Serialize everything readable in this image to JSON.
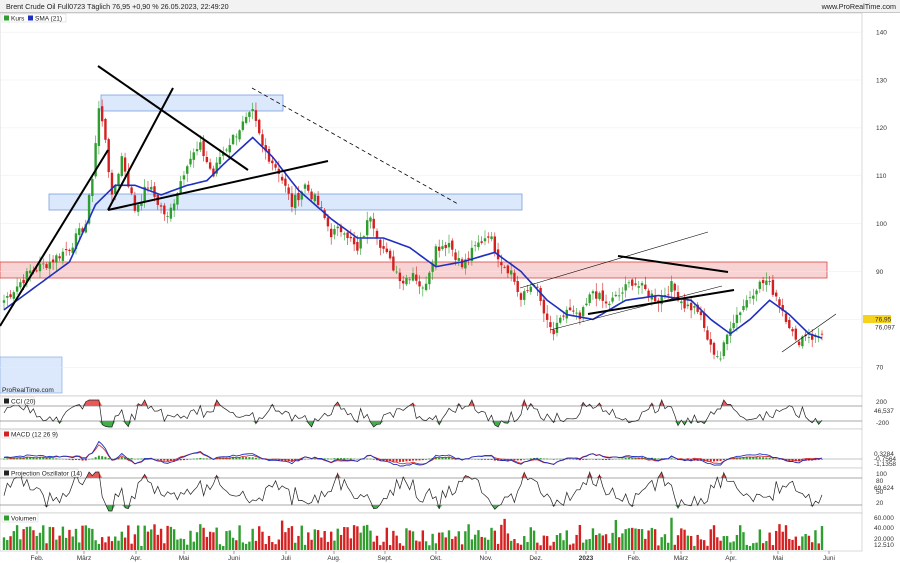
{
  "header": {
    "title": "Brent Crude Oil Full0723 Täglich 76,95 +0,90 % 26.05.2023, 22:49:20",
    "site": "www.ProRealTime.com"
  },
  "watermark": "ProRealTime.com",
  "colors": {
    "up": "#2f9e2f",
    "down": "#d42020",
    "sma": "#1f2fbf",
    "zone_blue": "#dce8fb",
    "zone_red": "#f8d3d3"
  },
  "chart_data": [
    {
      "type": "candlestick",
      "panel": "price",
      "legend": [
        {
          "name": "Kurs",
          "color": "#2f9e2f"
        },
        {
          "name": "SMA (21)",
          "color": "#1f2fbf"
        }
      ],
      "y_ticks": [
        "140",
        "130",
        "120",
        "110",
        "100",
        "90",
        "80",
        "70"
      ],
      "ylim": [
        64,
        144
      ],
      "last_price_label": "76,95",
      "sma_label": "76,097",
      "x_labels": [
        "Feb.",
        "März",
        "Apr.",
        "Mai",
        "Juni",
        "Juli",
        "Aug.",
        "Sept.",
        "Okt.",
        "Nov.",
        "Dez.",
        "2023",
        "Feb.",
        "März",
        "Apr.",
        "Mai",
        "Juni"
      ],
      "close_anchors": [
        [
          0,
          84
        ],
        [
          8,
          90
        ],
        [
          14,
          92
        ],
        [
          20,
          95
        ],
        [
          25,
          100
        ],
        [
          27,
          110
        ],
        [
          29,
          124
        ],
        [
          31,
          118
        ],
        [
          33,
          105
        ],
        [
          36,
          114
        ],
        [
          40,
          103
        ],
        [
          44,
          108
        ],
        [
          50,
          101
        ],
        [
          56,
          113
        ],
        [
          60,
          116
        ],
        [
          64,
          110
        ],
        [
          66,
          114
        ],
        [
          72,
          120
        ],
        [
          76,
          123
        ],
        [
          79,
          116
        ],
        [
          84,
          111
        ],
        [
          88,
          104
        ],
        [
          92,
          108
        ],
        [
          96,
          104
        ],
        [
          100,
          98
        ],
        [
          104,
          99
        ],
        [
          108,
          94
        ],
        [
          112,
          102
        ],
        [
          115,
          96
        ],
        [
          118,
          92
        ],
        [
          122,
          88
        ],
        [
          125,
          90
        ],
        [
          128,
          86
        ],
        [
          132,
          95
        ],
        [
          136,
          96
        ],
        [
          140,
          91
        ],
        [
          144,
          95
        ],
        [
          148,
          98
        ],
        [
          152,
          92
        ],
        [
          155,
          90
        ],
        [
          158,
          84
        ],
        [
          162,
          88
        ],
        [
          166,
          79
        ],
        [
          168,
          77
        ],
        [
          172,
          82
        ],
        [
          176,
          80
        ],
        [
          180,
          86
        ],
        [
          184,
          83
        ],
        [
          188,
          85
        ],
        [
          192,
          88
        ],
        [
          196,
          86
        ],
        [
          200,
          84
        ],
        [
          204,
          87
        ],
        [
          208,
          83
        ],
        [
          212,
          82
        ],
        [
          216,
          74
        ],
        [
          219,
          72
        ],
        [
          222,
          79
        ],
        [
          226,
          83
        ],
        [
          230,
          87
        ],
        [
          233,
          88
        ],
        [
          236,
          85
        ],
        [
          240,
          79
        ],
        [
          242,
          75
        ],
        [
          245,
          77
        ],
        [
          248,
          76
        ],
        [
          250,
          76.95
        ]
      ],
      "sma_anchors": [
        [
          0,
          82
        ],
        [
          10,
          87
        ],
        [
          20,
          92
        ],
        [
          28,
          104
        ],
        [
          34,
          108
        ],
        [
          40,
          108
        ],
        [
          48,
          106
        ],
        [
          56,
          108
        ],
        [
          62,
          109
        ],
        [
          68,
          113
        ],
        [
          76,
          118
        ],
        [
          82,
          114
        ],
        [
          90,
          107
        ],
        [
          100,
          101
        ],
        [
          108,
          97
        ],
        [
          116,
          97
        ],
        [
          124,
          95
        ],
        [
          132,
          91
        ],
        [
          140,
          92
        ],
        [
          150,
          94
        ],
        [
          158,
          90
        ],
        [
          166,
          84
        ],
        [
          172,
          81
        ],
        [
          180,
          80
        ],
        [
          190,
          84
        ],
        [
          200,
          85
        ],
        [
          210,
          84
        ],
        [
          216,
          80
        ],
        [
          222,
          77
        ],
        [
          228,
          80
        ],
        [
          234,
          84
        ],
        [
          240,
          81
        ],
        [
          246,
          77
        ],
        [
          250,
          76.1
        ]
      ],
      "volume_ticks": [
        "60.000",
        "40.000",
        "20.000"
      ]
    },
    {
      "type": "line",
      "panel": "indicator",
      "name": "CCI (20)",
      "y_ticks": [
        "200",
        "-200"
      ],
      "value_label": "46,537"
    },
    {
      "type": "line",
      "panel": "indicator",
      "name": "MACD (12 26 9)",
      "value_labels": [
        "0,3284",
        "-0,7564",
        "-1,1358"
      ]
    },
    {
      "type": "line",
      "panel": "indicator",
      "name": "Projection Oszillator (14)",
      "y_ticks": [
        "100",
        "80",
        "50",
        "20"
      ],
      "value_label": "69,624"
    },
    {
      "type": "bar",
      "panel": "volume",
      "name": "Volumen",
      "y_ticks": [
        "60.000",
        "40.000",
        "20.000"
      ],
      "value_label": "12.510"
    }
  ]
}
